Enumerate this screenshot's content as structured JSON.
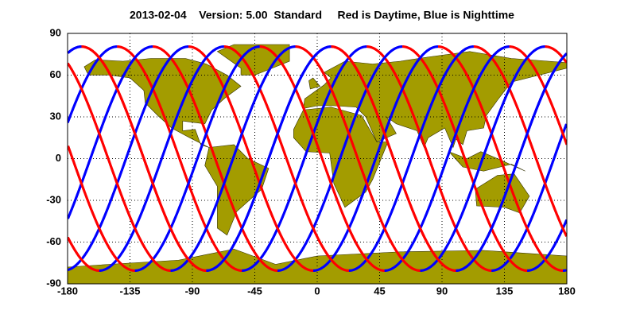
{
  "chart_data": {
    "type": "map",
    "title": "2013-02-04    Version: 5.00  Standard     Red is Daytime, Blue is Nighttime",
    "xlim": [
      -180,
      180
    ],
    "ylim": [
      -90,
      90
    ],
    "xticks": [
      -180,
      -135,
      -90,
      -45,
      0,
      45,
      90,
      135,
      180
    ],
    "yticks": [
      -90,
      -60,
      -30,
      0,
      30,
      60,
      90
    ],
    "grid": true
  }
}
